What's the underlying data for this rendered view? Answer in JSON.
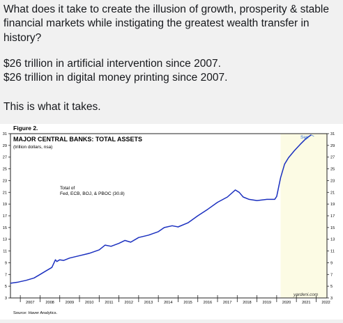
{
  "tweet": {
    "lines": [
      "What does it take to create the illusion of growth, prosperity & stable",
      "financial markets while instigating the greatest wealth transfer in",
      "history?",
      "$26 trillion in artificial intervention since 2007.",
      "$26 trillion in digital money printing since 2007.",
      "This is what it takes."
    ]
  },
  "figure": {
    "label": "Figure 2.",
    "source": "Source: Haver Analytics.",
    "watermark": "yardeni.com",
    "sep_label": "Sep"
  },
  "colors": {
    "line": "#1a2fbf",
    "shade": "#fcfbe4",
    "sep": "#2d6dd3"
  },
  "chart_data": {
    "type": "line",
    "title": "MAJOR CENTRAL BANKS: TOTAL ASSETS",
    "subtitle": "(trillion dollars, nsa)",
    "annotation": "Total of\nFed, ECB, BOJ, & PBOC (30.8)",
    "ylim": [
      3,
      31
    ],
    "yticks": [
      3,
      5,
      7,
      9,
      11,
      13,
      15,
      17,
      19,
      21,
      23,
      25,
      27,
      29,
      31
    ],
    "xlim": [
      2006.5,
      2022.55
    ],
    "xticks": [
      "2007",
      "2008",
      "2009",
      "2010",
      "2011",
      "2012",
      "2013",
      "2014",
      "2015",
      "2016",
      "2017",
      "2018",
      "2019",
      "2020",
      "2021",
      "2022"
    ],
    "shaded_from": 2020.2,
    "grid": false,
    "series": [
      {
        "x": [
          2006.5,
          2006.9,
          2007.3,
          2007.7,
          2008.0,
          2008.3,
          2008.6,
          2008.78,
          2008.85,
          2009.0,
          2009.2,
          2009.5,
          2010.0,
          2010.5,
          2011.0,
          2011.3,
          2011.6,
          2012.0,
          2012.3,
          2012.6,
          2013.0,
          2013.5,
          2014.0,
          2014.3,
          2014.7,
          2015.0,
          2015.5,
          2016.0,
          2016.5,
          2017.0,
          2017.5,
          2017.9,
          2018.1,
          2018.3,
          2018.6,
          2019.0,
          2019.5,
          2019.9,
          2020.0,
          2020.2,
          2020.4,
          2020.6,
          2020.9,
          2021.2,
          2021.5,
          2021.75
        ],
        "y": [
          5.5,
          5.7,
          6.0,
          6.4,
          7.0,
          7.6,
          8.2,
          9.5,
          9.2,
          9.5,
          9.4,
          9.8,
          10.2,
          10.6,
          11.2,
          12.0,
          11.8,
          12.3,
          12.8,
          12.5,
          13.3,
          13.7,
          14.3,
          15.0,
          15.3,
          15.1,
          15.8,
          17.0,
          18.1,
          19.3,
          20.2,
          21.4,
          21.0,
          20.2,
          19.8,
          19.6,
          19.8,
          19.8,
          20.3,
          23.5,
          25.8,
          26.9,
          28.1,
          29.2,
          30.2,
          30.8
        ]
      }
    ]
  }
}
